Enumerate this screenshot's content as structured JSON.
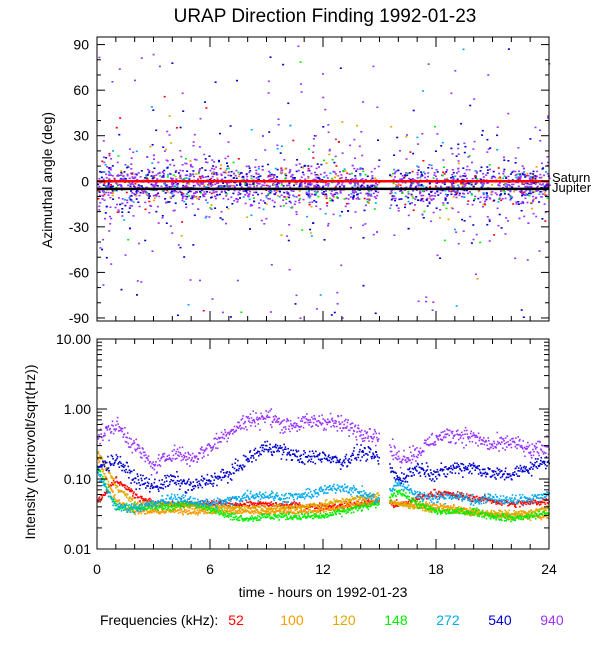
{
  "chart_data": [
    {
      "type": "scatter",
      "panel": "top",
      "title": "URAP Direction Finding  1992-01-23",
      "ylabel": "Azimuthal angle (deg)",
      "xlabel": "time - hours on 1992-01-23",
      "xlim": [
        0,
        24
      ],
      "ylim": [
        -92,
        95
      ],
      "x_ticks": [
        0,
        6,
        12,
        18,
        24
      ],
      "y_ticks": [
        90,
        60,
        30,
        0,
        -30,
        -60,
        -90
      ],
      "reference_lines": [
        {
          "name": "Saturn",
          "y": 0,
          "color": "#ff0000"
        },
        {
          "name": "Jupiter",
          "y": -5,
          "color": "#000000"
        }
      ],
      "series_note": "dense point clouds per frequency, concentrated within about -30..+30 deg",
      "data_gap_hours": [
        [
          14.95,
          15.5
        ]
      ]
    },
    {
      "type": "line",
      "panel": "bottom",
      "ylabel": "Intensity (microvolt/sqrt(Hz))",
      "xlabel": "time - hours on 1992-01-23",
      "xlim": [
        0,
        24
      ],
      "ylim": [
        0.01,
        10
      ],
      "yscale": "log",
      "x_ticks": [
        0,
        6,
        12,
        18,
        24
      ],
      "y_ticks": [
        10.0,
        1.0,
        0.1,
        0.01
      ],
      "y_tick_labels": [
        "10.00",
        "1.00",
        "0.10",
        "0.01"
      ],
      "x": [
        0,
        1,
        2,
        3,
        4,
        5,
        6,
        7,
        8,
        9,
        10,
        11,
        12,
        13,
        14,
        15,
        16,
        17,
        18,
        19,
        20,
        21,
        22,
        23,
        24
      ],
      "series": [
        {
          "name": "52",
          "color": "#ff0000",
          "values": [
            0.05,
            0.1,
            0.06,
            0.045,
            0.045,
            0.045,
            0.045,
            0.045,
            0.045,
            0.044,
            0.043,
            0.042,
            0.041,
            0.042,
            0.046,
            0.05,
            0.043,
            0.055,
            0.065,
            0.06,
            0.055,
            0.05,
            0.045,
            0.047,
            0.05
          ]
        },
        {
          "name": "100",
          "color": "#ff9900",
          "values": [
            0.2,
            0.05,
            0.035,
            0.035,
            0.036,
            0.035,
            0.035,
            0.035,
            0.035,
            0.035,
            0.035,
            0.035,
            0.037,
            0.04,
            0.045,
            0.05,
            0.045,
            0.045,
            0.042,
            0.04,
            0.035,
            0.03,
            0.03,
            0.03,
            0.03
          ]
        },
        {
          "name": "120",
          "color": "#ddaa00",
          "values": [
            0.25,
            0.08,
            0.045,
            0.045,
            0.045,
            0.042,
            0.04,
            0.04,
            0.04,
            0.04,
            0.04,
            0.042,
            0.045,
            0.05,
            0.055,
            0.06,
            0.045,
            0.04,
            0.037,
            0.035,
            0.034,
            0.034,
            0.033,
            0.035,
            0.04
          ]
        },
        {
          "name": "148",
          "color": "#00ee00",
          "values": [
            0.15,
            0.04,
            0.04,
            0.04,
            0.042,
            0.045,
            0.04,
            0.03,
            0.028,
            0.03,
            0.03,
            0.03,
            0.03,
            0.035,
            0.04,
            0.045,
            0.07,
            0.045,
            0.035,
            0.035,
            0.035,
            0.03,
            0.028,
            0.03,
            0.035
          ]
        },
        {
          "name": "272",
          "color": "#00aaee",
          "values": [
            0.12,
            0.04,
            0.04,
            0.045,
            0.055,
            0.05,
            0.045,
            0.05,
            0.06,
            0.06,
            0.055,
            0.06,
            0.07,
            0.08,
            0.065,
            0.05,
            0.09,
            0.06,
            0.055,
            0.06,
            0.05,
            0.055,
            0.05,
            0.055,
            0.06
          ]
        },
        {
          "name": "540",
          "color": "#0000cc",
          "values": [
            0.15,
            0.2,
            0.1,
            0.08,
            0.1,
            0.08,
            0.1,
            0.12,
            0.2,
            0.3,
            0.25,
            0.2,
            0.22,
            0.18,
            0.25,
            0.2,
            0.1,
            0.15,
            0.12,
            0.15,
            0.15,
            0.12,
            0.12,
            0.15,
            0.2
          ]
        },
        {
          "name": "940",
          "color": "#9933ff",
          "values": [
            0.4,
            0.6,
            0.3,
            0.15,
            0.25,
            0.2,
            0.3,
            0.5,
            0.7,
            0.8,
            0.6,
            0.65,
            0.7,
            0.6,
            0.5,
            0.4,
            0.2,
            0.25,
            0.4,
            0.45,
            0.4,
            0.3,
            0.35,
            0.25,
            0.3
          ]
        }
      ]
    }
  ],
  "legend": {
    "label": "Frequencies (kHz):",
    "items": [
      {
        "label": "52",
        "color": "#ff0000"
      },
      {
        "label": "100",
        "color": "#ff9900"
      },
      {
        "label": "120",
        "color": "#ddaa00"
      },
      {
        "label": "148",
        "color": "#00ee00"
      },
      {
        "label": "272",
        "color": "#00aaee"
      },
      {
        "label": "540",
        "color": "#0000cc"
      },
      {
        "label": "940",
        "color": "#9933ff"
      }
    ]
  }
}
